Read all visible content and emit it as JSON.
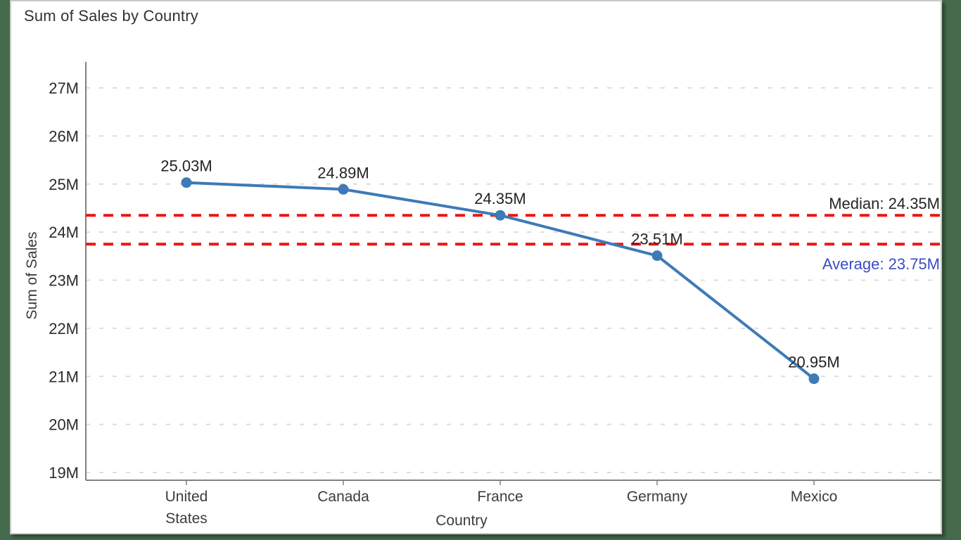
{
  "title": "Sum of Sales by Country",
  "colors": {
    "page_background": "#456a4c",
    "card_background": "#ffffff",
    "card_border": "#c9c9c9",
    "axis_line": "#808080",
    "gridline": "#dcdcdc",
    "series": "#3d7ab7",
    "reference_line": "#ed1515",
    "median_label": "#252423",
    "average_label": "#3b4cc4",
    "text": "#2b2b2b"
  },
  "chart_data": {
    "type": "line",
    "title": "Sum of Sales by Country",
    "xlabel": "Country",
    "ylabel": "Sum of Sales",
    "categories": [
      "United States",
      "Canada",
      "France",
      "Germany",
      "Mexico"
    ],
    "category_label_lines": [
      [
        "United",
        "States"
      ],
      [
        "Canada"
      ],
      [
        "France"
      ],
      [
        "Germany"
      ],
      [
        "Mexico"
      ]
    ],
    "values_millions": [
      25.03,
      24.89,
      24.35,
      23.51,
      20.95
    ],
    "data_labels": [
      "25.03M",
      "24.89M",
      "24.35M",
      "23.51M",
      "20.95M"
    ],
    "ylim_millions": [
      19,
      27
    ],
    "y_ticks": [
      {
        "value": 27,
        "label": "27M"
      },
      {
        "value": 26,
        "label": "26M"
      },
      {
        "value": 25,
        "label": "25M"
      },
      {
        "value": 24,
        "label": "24M"
      },
      {
        "value": 23,
        "label": "23M"
      },
      {
        "value": 22,
        "label": "22M"
      },
      {
        "value": 21,
        "label": "21M"
      },
      {
        "value": 20,
        "label": "20M"
      },
      {
        "value": 19,
        "label": "19M"
      }
    ],
    "grid": "horizontal-dashed",
    "legend": "none",
    "reference_lines": [
      {
        "name": "Median",
        "label": "Median: 24.35M",
        "value_millions": 24.35,
        "style": "dashed",
        "label_position": "above-right"
      },
      {
        "name": "Average",
        "label": "Average: 23.75M",
        "value_millions": 23.75,
        "style": "dashed",
        "label_position": "below-right"
      }
    ]
  }
}
